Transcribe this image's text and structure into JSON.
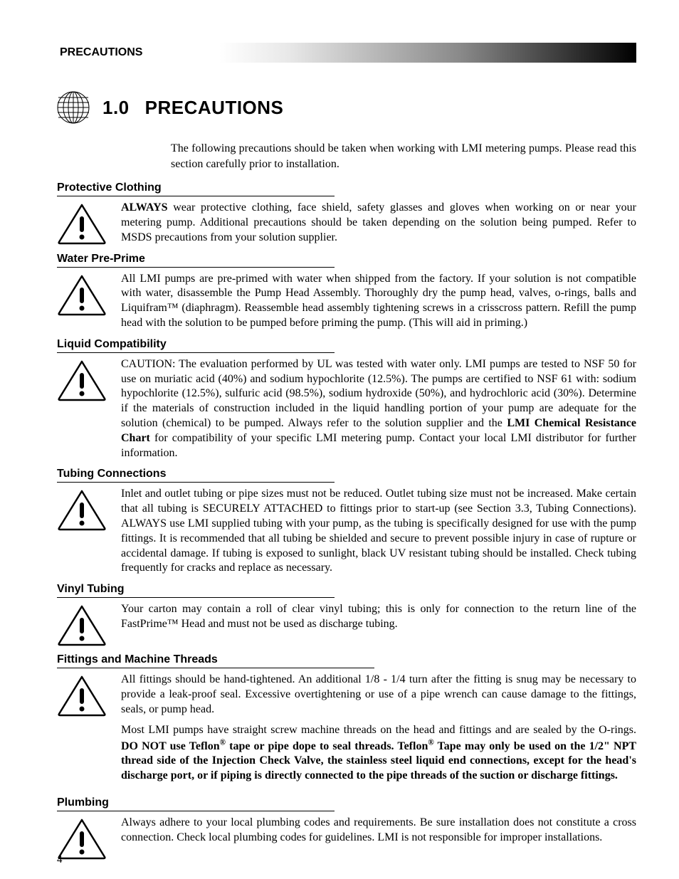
{
  "header_label": "PRECAUTIONS",
  "title_number": "1.0",
  "title_text": "PRECAUTIONS",
  "intro": "The following precautions should be taken when working with LMI metering pumps. Please read this section carefully prior to installation.",
  "sections": [
    {
      "heading": "Protective Clothing",
      "body_html": "<b>ALWAYS</b> wear protective clothing, face shield, safety glasses and gloves when working on or near your metering pump. Additional precautions should be taken depending on the solution being pumped. Refer to MSDS precautions from your solution supplier."
    },
    {
      "heading": "Water Pre-Prime",
      "body_html": "All LMI pumps are pre-primed with water when shipped from the factory. If your solution is not compatible with water, disassemble the Pump Head Assembly. Thoroughly dry the pump head, valves, o-rings, balls and Liquifram™ (diaphragm). Reassemble head assembly tightening screws in a crisscross pattern. Refill the pump head with the solution to be pumped before priming the pump. (This will aid in priming.)"
    },
    {
      "heading": "Liquid Compatibility",
      "body_html": "CAUTION: The evaluation performed by UL was tested with water only. LMI pumps are tested to NSF 50 for use on muriatic acid (40%) and sodium hypochlorite (12.5%). The pumps are certified to NSF 61 with: sodium hypochlorite (12.5%), sulfuric acid (98.5%), sodium hydroxide (50%), and hydrochloric acid (30%). Determine if the materials of construction included in the liquid handling portion of your pump are adequate for the solution (chemical) to be pumped. Always refer to the solution supplier and the <b>LMI Chemical Resistance Chart</b> for compatibility of your specific LMI metering pump. Contact your local LMI distributor for further information."
    },
    {
      "heading": "Tubing Connections",
      "body_html": "Inlet and outlet tubing or pipe sizes must not be reduced. Outlet tubing size must not be increased. Make certain that all tubing is SECURELY ATTACHED to fittings prior to start-up (see Section 3.3, Tubing Connections). ALWAYS use LMI supplied tubing with your pump, as the tubing is specifically designed for use with the pump fittings. It is recommended that all tubing be shielded and secure to prevent possible injury in case of rupture or accidental damage. If tubing is exposed to sunlight, black UV resistant tubing should be installed. Check tubing frequently for cracks and replace as necessary."
    },
    {
      "heading": "Vinyl Tubing",
      "body_html": "Your carton may contain a roll of clear vinyl tubing; this is only for connection to the return line of the FastPrime™ Head and must not be used as discharge tubing."
    },
    {
      "heading": "Fittings and Machine Threads",
      "body_html": "<p>All fittings should be hand-tightened. An additional 1/8 - 1/4 turn after the fitting is snug may be necessary to provide a leak-proof seal. Excessive overtightening or use of a pipe wrench can cause damage to the fittings, seals, or pump head.</p><p>Most LMI pumps have straight screw machine threads on the head and fittings and are sealed by the O-rings. <b>DO NOT use Teflon<sup>®</sup> tape or pipe dope to seal threads. Teflon<sup>®</sup> Tape may only be used on the 1/2\" NPT thread side of the Injection Check Valve, the stainless steel liquid end connections, except for the head's discharge port, or if piping is directly connected to the pipe threads of the suction or discharge fittings.</b></p>"
    },
    {
      "heading": "Plumbing",
      "body_html": "Always adhere to your local plumbing codes and requirements. Be sure installation does not constitute a cross connection. Check local plumbing codes for guidelines. LMI is not responsible for improper installations."
    }
  ],
  "page_number": "4"
}
